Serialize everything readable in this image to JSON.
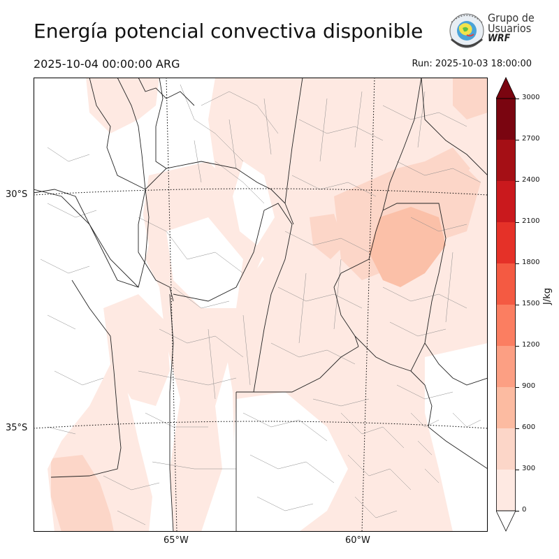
{
  "header": {
    "title": "Energía potencial convectiva disponible",
    "valid_time": "2025-10-04 00:00:00 ARG",
    "run_time": "Run: 2025-10-03 18:00:00"
  },
  "logo": {
    "line1": "Grupo de",
    "line2": "Usuarios",
    "line3": "WRF"
  },
  "map": {
    "lat_labels": [
      "30°S",
      "35°S"
    ],
    "lon_labels": [
      "65°W",
      "60°W"
    ]
  },
  "colorbar": {
    "unit": "J/kg",
    "ticks": [
      "0",
      "300",
      "600",
      "900",
      "1200",
      "1500",
      "1800",
      "2100",
      "2400",
      "2700",
      "3000"
    ],
    "colors": [
      "#fee9e2",
      "#fcd6c8",
      "#fcbba1",
      "#fc9f83",
      "#fb7e61",
      "#f45a42",
      "#e53128",
      "#ca191d",
      "#a50f15",
      "#7a0510"
    ],
    "extend": "both"
  },
  "colors": {
    "fill_low": "#fee9e2",
    "fill_mid": "#fcd6c8",
    "fill_high": "#fbc0a8",
    "border": "#222222",
    "dept": "#8a8a8a"
  }
}
